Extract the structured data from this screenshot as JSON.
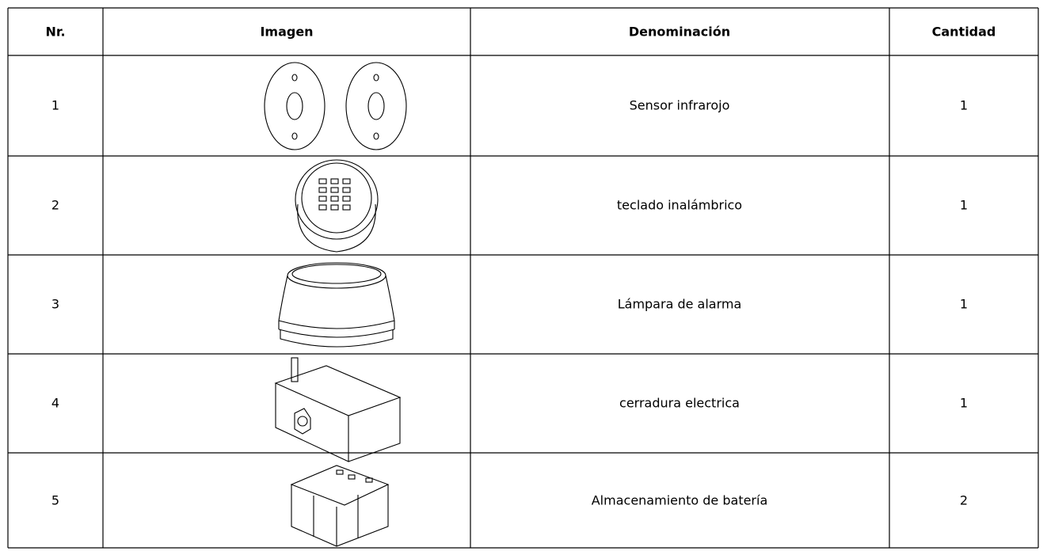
{
  "table": {
    "header": [
      "Nr.",
      "Imagen",
      "Denominación",
      "Cantidad"
    ],
    "rows": [
      [
        "1",
        "Sensor infrarojo",
        "1"
      ],
      [
        "2",
        "teclado inalámbrico",
        "1"
      ],
      [
        "3",
        "Lámpara de alarma",
        "1"
      ],
      [
        "4",
        "cerradura electrica",
        "1"
      ],
      [
        "5",
        "Almacenamiento de batería",
        "2"
      ]
    ]
  }
}
